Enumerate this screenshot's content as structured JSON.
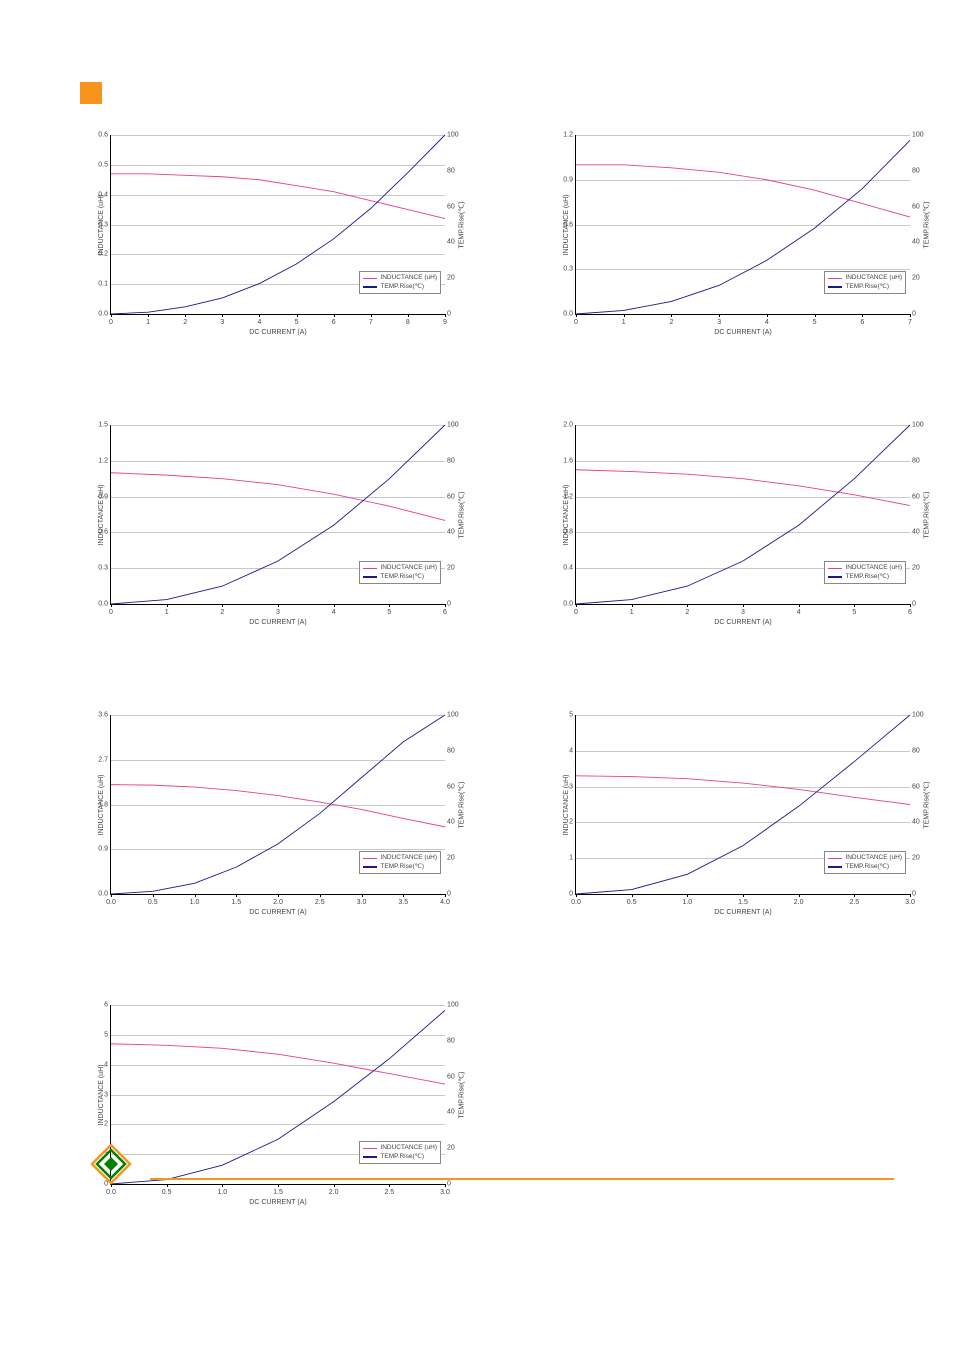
{
  "accent_color": "#f7941d",
  "grid_color": "#c8c8c8",
  "axis_color": "#000000",
  "tick_color": "#444444",
  "inductance_color": "#e83e8c",
  "temp_color": "#1a1a8c",
  "xlabel": "DC CURRENT (A)",
  "ylabel_left": "INDUCTANCE (uH)",
  "ylabel_right": "TEMP.Rise(℃)",
  "legend": {
    "inductance": "INDUCTANCE (uH)",
    "temp": "TEMP.Rise(℃)"
  },
  "tick_fontsize": 7,
  "label_fontsize": 7,
  "legend_fontsize": 6.5,
  "charts": [
    {
      "id": "c1",
      "x_ticks": [
        0,
        1,
        2,
        3,
        4,
        5,
        6,
        7,
        8,
        9
      ],
      "yl_ticks": [
        0.0,
        0.1,
        0.2,
        0.3,
        0.4,
        0.5,
        0.6
      ],
      "yl_decimals": 1,
      "yr_ticks": [
        0,
        20,
        40,
        60,
        80,
        100
      ],
      "xlim": [
        0,
        9
      ],
      "ylim_l": [
        0.0,
        0.6
      ],
      "ylim_r": [
        0,
        100
      ],
      "inductance": [
        [
          0,
          0.47
        ],
        [
          1,
          0.47
        ],
        [
          2,
          0.465
        ],
        [
          3,
          0.46
        ],
        [
          4,
          0.45
        ],
        [
          5,
          0.43
        ],
        [
          6,
          0.41
        ],
        [
          7,
          0.38
        ],
        [
          8,
          0.35
        ],
        [
          9,
          0.32
        ]
      ],
      "temp": [
        [
          0,
          0
        ],
        [
          1,
          1
        ],
        [
          2,
          4
        ],
        [
          3,
          9
        ],
        [
          4,
          17
        ],
        [
          5,
          28
        ],
        [
          6,
          42
        ],
        [
          7,
          59
        ],
        [
          8,
          79
        ],
        [
          9,
          100
        ]
      ]
    },
    {
      "id": "c2",
      "x_ticks": [
        0,
        1,
        2,
        3,
        4,
        5,
        6,
        7
      ],
      "yl_ticks": [
        0.0,
        0.3,
        0.6,
        0.9,
        1.2
      ],
      "yl_decimals": 1,
      "yr_ticks": [
        0,
        20,
        40,
        60,
        80,
        100
      ],
      "xlim": [
        0,
        7
      ],
      "ylim_l": [
        0.0,
        1.2
      ],
      "ylim_r": [
        0,
        100
      ],
      "inductance": [
        [
          0,
          1.0
        ],
        [
          1,
          1.0
        ],
        [
          2,
          0.98
        ],
        [
          3,
          0.95
        ],
        [
          4,
          0.9
        ],
        [
          5,
          0.83
        ],
        [
          6,
          0.74
        ],
        [
          7,
          0.65
        ]
      ],
      "temp": [
        [
          0,
          0
        ],
        [
          1,
          2
        ],
        [
          2,
          7
        ],
        [
          3,
          16
        ],
        [
          4,
          30
        ],
        [
          5,
          48
        ],
        [
          6,
          70
        ],
        [
          7,
          97
        ]
      ]
    },
    {
      "id": "c3",
      "x_ticks": [
        0,
        1,
        2,
        3,
        4,
        5,
        6
      ],
      "yl_ticks": [
        0.0,
        0.3,
        0.6,
        0.9,
        1.2,
        1.5
      ],
      "yl_decimals": 1,
      "yr_ticks": [
        0,
        20,
        40,
        60,
        80,
        100
      ],
      "xlim": [
        0,
        6
      ],
      "ylim_l": [
        0.0,
        1.5
      ],
      "ylim_r": [
        0,
        100
      ],
      "inductance": [
        [
          0,
          1.1
        ],
        [
          1,
          1.08
        ],
        [
          2,
          1.05
        ],
        [
          3,
          1.0
        ],
        [
          4,
          0.92
        ],
        [
          5,
          0.82
        ],
        [
          6,
          0.7
        ]
      ],
      "temp": [
        [
          0,
          0
        ],
        [
          1,
          2.5
        ],
        [
          2,
          10
        ],
        [
          3,
          24
        ],
        [
          4,
          44
        ],
        [
          5,
          70
        ],
        [
          6,
          100
        ]
      ]
    },
    {
      "id": "c4",
      "x_ticks": [
        0,
        1,
        2,
        3,
        4,
        5,
        6
      ],
      "yl_ticks": [
        0.0,
        0.4,
        0.8,
        1.2,
        1.6,
        2.0
      ],
      "yl_decimals": 1,
      "yr_ticks": [
        0,
        20,
        40,
        60,
        80,
        100
      ],
      "xlim": [
        0,
        6
      ],
      "ylim_l": [
        0.0,
        2.0
      ],
      "ylim_r": [
        0,
        100
      ],
      "inductance": [
        [
          0,
          1.5
        ],
        [
          1,
          1.48
        ],
        [
          2,
          1.45
        ],
        [
          3,
          1.4
        ],
        [
          4,
          1.32
        ],
        [
          5,
          1.22
        ],
        [
          6,
          1.1
        ]
      ],
      "temp": [
        [
          0,
          0
        ],
        [
          1,
          2.5
        ],
        [
          2,
          10
        ],
        [
          3,
          24
        ],
        [
          4,
          44
        ],
        [
          5,
          70
        ],
        [
          6,
          100
        ]
      ]
    },
    {
      "id": "c5",
      "x_ticks": [
        0.0,
        0.5,
        1.0,
        1.5,
        2.0,
        2.5,
        3.0,
        3.5,
        4.0
      ],
      "x_decimals": 1,
      "yl_ticks": [
        0.0,
        0.9,
        1.8,
        2.7,
        3.6
      ],
      "yl_decimals": 1,
      "yr_ticks": [
        0,
        20,
        40,
        60,
        80,
        100
      ],
      "xlim": [
        0,
        4.0
      ],
      "ylim_l": [
        0.0,
        3.6
      ],
      "ylim_r": [
        0,
        100
      ],
      "inductance": [
        [
          0,
          2.2
        ],
        [
          0.5,
          2.19
        ],
        [
          1,
          2.15
        ],
        [
          1.5,
          2.08
        ],
        [
          2,
          1.98
        ],
        [
          2.5,
          1.85
        ],
        [
          3,
          1.7
        ],
        [
          3.5,
          1.52
        ],
        [
          4,
          1.35
        ]
      ],
      "temp": [
        [
          0,
          0
        ],
        [
          0.5,
          1.5
        ],
        [
          1,
          6
        ],
        [
          1.5,
          15
        ],
        [
          2,
          28
        ],
        [
          2.5,
          45
        ],
        [
          3,
          65
        ],
        [
          3.5,
          85
        ],
        [
          4,
          100
        ]
      ]
    },
    {
      "id": "c6",
      "x_ticks": [
        0.0,
        0.5,
        1.0,
        1.5,
        2.0,
        2.5,
        3.0
      ],
      "x_decimals": 1,
      "yl_ticks": [
        0,
        1,
        2,
        3,
        4,
        5
      ],
      "yl_decimals": 0,
      "yr_ticks": [
        0,
        20,
        40,
        60,
        80,
        100
      ],
      "xlim": [
        0,
        3.0
      ],
      "ylim_l": [
        0,
        5
      ],
      "ylim_r": [
        0,
        100
      ],
      "inductance": [
        [
          0,
          3.3
        ],
        [
          0.5,
          3.28
        ],
        [
          1,
          3.22
        ],
        [
          1.5,
          3.1
        ],
        [
          2,
          2.92
        ],
        [
          2.5,
          2.7
        ],
        [
          3,
          2.5
        ]
      ],
      "temp": [
        [
          0,
          0
        ],
        [
          0.5,
          2.5
        ],
        [
          1,
          11
        ],
        [
          1.5,
          27
        ],
        [
          2,
          49
        ],
        [
          2.5,
          74
        ],
        [
          3,
          100
        ]
      ]
    },
    {
      "id": "c7",
      "x_ticks": [
        0.0,
        0.5,
        1.0,
        1.5,
        2.0,
        2.5,
        3.0
      ],
      "x_decimals": 1,
      "yl_ticks": [
        0,
        1,
        2,
        3,
        4,
        5,
        6
      ],
      "yl_decimals": 0,
      "yr_ticks": [
        0,
        20,
        40,
        60,
        80,
        100
      ],
      "xlim": [
        0,
        3.0
      ],
      "ylim_l": [
        0,
        6
      ],
      "ylim_r": [
        0,
        100
      ],
      "inductance": [
        [
          0,
          4.7
        ],
        [
          0.5,
          4.65
        ],
        [
          1,
          4.55
        ],
        [
          1.5,
          4.35
        ],
        [
          2,
          4.05
        ],
        [
          2.5,
          3.7
        ],
        [
          3,
          3.35
        ]
      ],
      "temp": [
        [
          0,
          0
        ],
        [
          0.5,
          2.5
        ],
        [
          1,
          10.5
        ],
        [
          1.5,
          25
        ],
        [
          2,
          46
        ],
        [
          2.5,
          70
        ],
        [
          3,
          97
        ]
      ]
    }
  ]
}
